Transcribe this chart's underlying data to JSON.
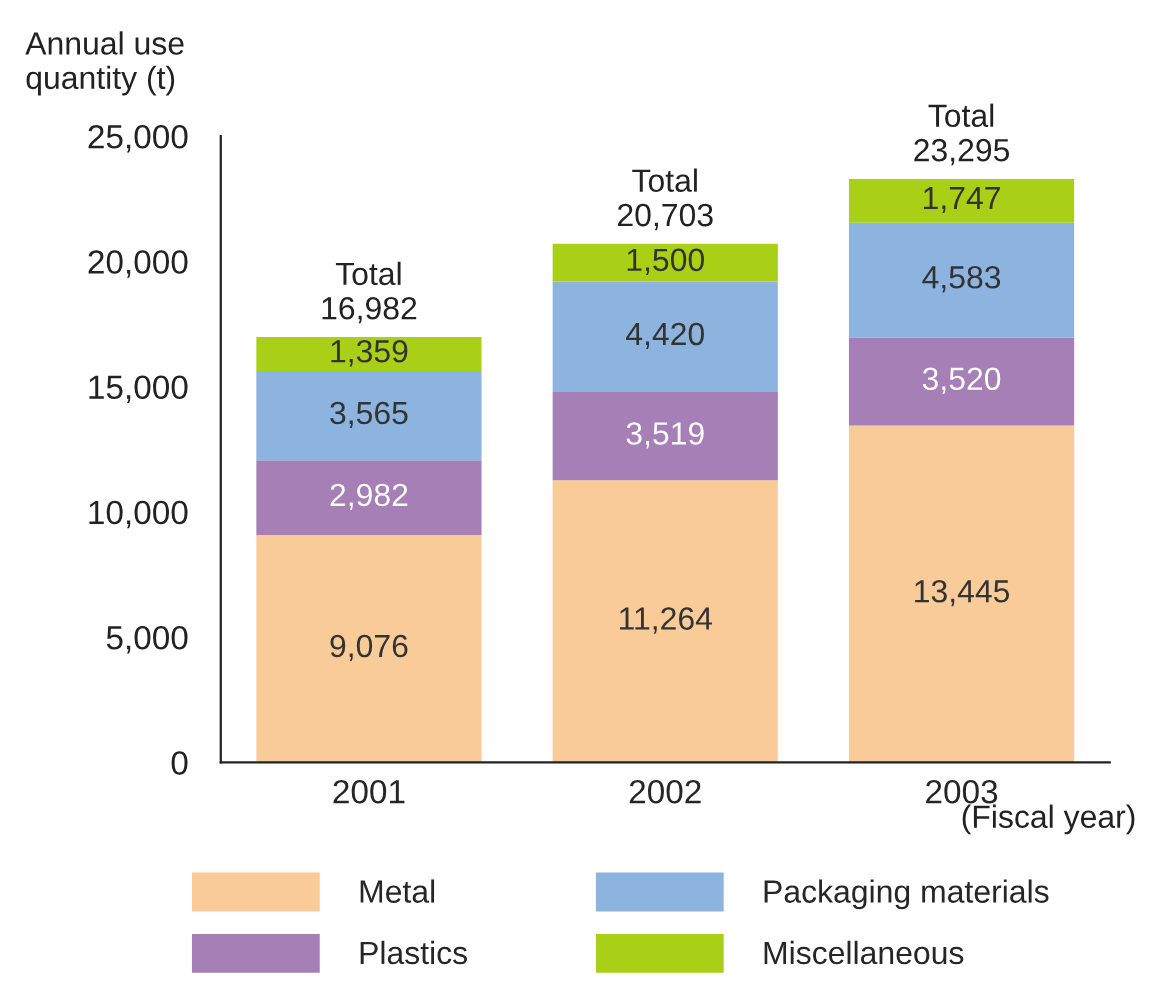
{
  "chart_data": {
    "type": "bar",
    "stacked": true,
    "ylabel": "Annual use\nquantity (t)",
    "xlabel": "(Fiscal year)",
    "categories": [
      "2001",
      "2002",
      "2003"
    ],
    "series": [
      {
        "name": "Metal",
        "color": "#f9cb98",
        "values": [
          9076,
          11264,
          13445
        ],
        "value_labels": [
          "9,076",
          "11,264",
          "13,445"
        ]
      },
      {
        "name": "Plastics",
        "color": "#a57fb5",
        "values": [
          2982,
          3519,
          3520
        ],
        "value_labels": [
          "2,982",
          "3,519",
          "3,520"
        ]
      },
      {
        "name": "Packaging materials",
        "color": "#8db3df",
        "values": [
          3565,
          4420,
          4583
        ],
        "value_labels": [
          "3,565",
          "4,420",
          "4,583"
        ]
      },
      {
        "name": "Miscellaneous",
        "color": "#a9d017",
        "values": [
          1359,
          1500,
          1747
        ],
        "value_labels": [
          "1,359",
          "1,500",
          "1,747"
        ]
      }
    ],
    "totals": [
      "Total\n16,982",
      "Total\n20,703",
      "Total\n23,295"
    ],
    "ylim": [
      0,
      25000
    ],
    "yticks": [
      {
        "value": 0,
        "label": "0"
      },
      {
        "value": 5000,
        "label": "5,000"
      },
      {
        "value": 10000,
        "label": "10,000"
      },
      {
        "value": 15000,
        "label": "15,000"
      },
      {
        "value": 20000,
        "label": "20,000"
      },
      {
        "value": 25000,
        "label": "25,000"
      }
    ],
    "grid": false,
    "legend": "bottom"
  }
}
